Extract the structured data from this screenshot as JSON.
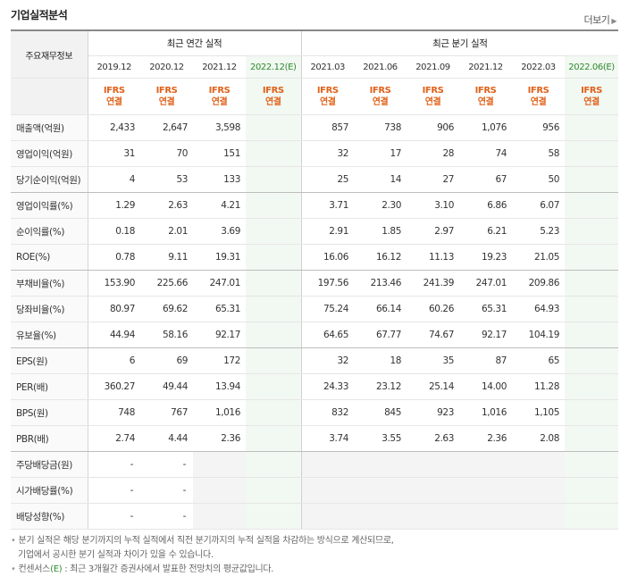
{
  "title": "기업실적분석",
  "more_label": "더보기",
  "header": {
    "label": "주요재무정보",
    "annual_group": "최근 연간 실적",
    "quarter_group": "최근 분기 실적",
    "annual_years": [
      "2019.12",
      "2020.12",
      "2021.12",
      "2022.12"
    ],
    "quarter_periods": [
      "2021.03",
      "2021.06",
      "2021.09",
      "2021.12",
      "2022.03",
      "2022.06"
    ],
    "estimate_mark": "(E)",
    "ifrs_line1": "IFRS",
    "ifrs_line2": "연결"
  },
  "rows": [
    {
      "label": "매출액(억원)",
      "values": [
        "2,433",
        "2,647",
        "3,598",
        "",
        "857",
        "738",
        "906",
        "1,076",
        "956",
        ""
      ]
    },
    {
      "label": "영업이익(억원)",
      "values": [
        "31",
        "70",
        "151",
        "",
        "32",
        "17",
        "28",
        "74",
        "58",
        ""
      ]
    },
    {
      "label": "당기순이익(억원)",
      "values": [
        "4",
        "53",
        "133",
        "",
        "25",
        "14",
        "27",
        "67",
        "50",
        ""
      ]
    },
    {
      "label": "영업이익률(%)",
      "values": [
        "1.29",
        "2.63",
        "4.21",
        "",
        "3.71",
        "2.30",
        "3.10",
        "6.86",
        "6.07",
        ""
      ]
    },
    {
      "label": "순이익률(%)",
      "values": [
        "0.18",
        "2.01",
        "3.69",
        "",
        "2.91",
        "1.85",
        "2.97",
        "6.21",
        "5.23",
        ""
      ]
    },
    {
      "label": "ROE(%)",
      "values": [
        "0.78",
        "9.11",
        "19.31",
        "",
        "16.06",
        "16.12",
        "11.13",
        "19.23",
        "21.05",
        ""
      ]
    },
    {
      "label": "부채비율(%)",
      "values": [
        "153.90",
        "225.66",
        "247.01",
        "",
        "197.56",
        "213.46",
        "241.39",
        "247.01",
        "209.86",
        ""
      ]
    },
    {
      "label": "당좌비율(%)",
      "values": [
        "80.97",
        "69.62",
        "65.31",
        "",
        "75.24",
        "66.14",
        "60.26",
        "65.31",
        "64.93",
        ""
      ]
    },
    {
      "label": "유보율(%)",
      "values": [
        "44.94",
        "58.16",
        "92.17",
        "",
        "64.65",
        "67.77",
        "74.67",
        "92.17",
        "104.19",
        ""
      ]
    },
    {
      "label": "EPS(원)",
      "values": [
        "6",
        "69",
        "172",
        "",
        "32",
        "18",
        "35",
        "87",
        "65",
        ""
      ]
    },
    {
      "label": "PER(배)",
      "values": [
        "360.27",
        "49.44",
        "13.94",
        "",
        "24.33",
        "23.12",
        "25.14",
        "14.00",
        "11.28",
        ""
      ]
    },
    {
      "label": "BPS(원)",
      "values": [
        "748",
        "767",
        "1,016",
        "",
        "832",
        "845",
        "923",
        "1,016",
        "1,105",
        ""
      ]
    },
    {
      "label": "PBR(배)",
      "values": [
        "2.74",
        "4.44",
        "2.36",
        "",
        "3.74",
        "3.55",
        "2.63",
        "2.36",
        "2.08",
        ""
      ]
    },
    {
      "label": "주당배당금(원)",
      "values": [
        "-",
        "-",
        "",
        "",
        "",
        "",
        "",
        "",
        "",
        ""
      ]
    },
    {
      "label": "시가배당률(%)",
      "values": [
        "-",
        "-",
        "",
        "",
        "",
        "",
        "",
        "",
        "",
        ""
      ]
    },
    {
      "label": "배당성향(%)",
      "values": [
        "-",
        "-",
        "",
        "",
        "",
        "",
        "",
        "",
        "",
        ""
      ]
    }
  ],
  "notes": {
    "line1": "분기 실적은 해당 분기까지의 누적 실적에서 직전 분기까지의 누적 실적을 차감하는 방식으로 계산되므로,",
    "line2": "기업에서 공시한 분기 실적과 차이가 있을 수 있습니다.",
    "line3_prefix": "컨센서스",
    "line3_mark": "(E)",
    "line3_suffix": " : 최근 3개월간 증권사에서 발표한 전망치의 평균값입니다."
  }
}
